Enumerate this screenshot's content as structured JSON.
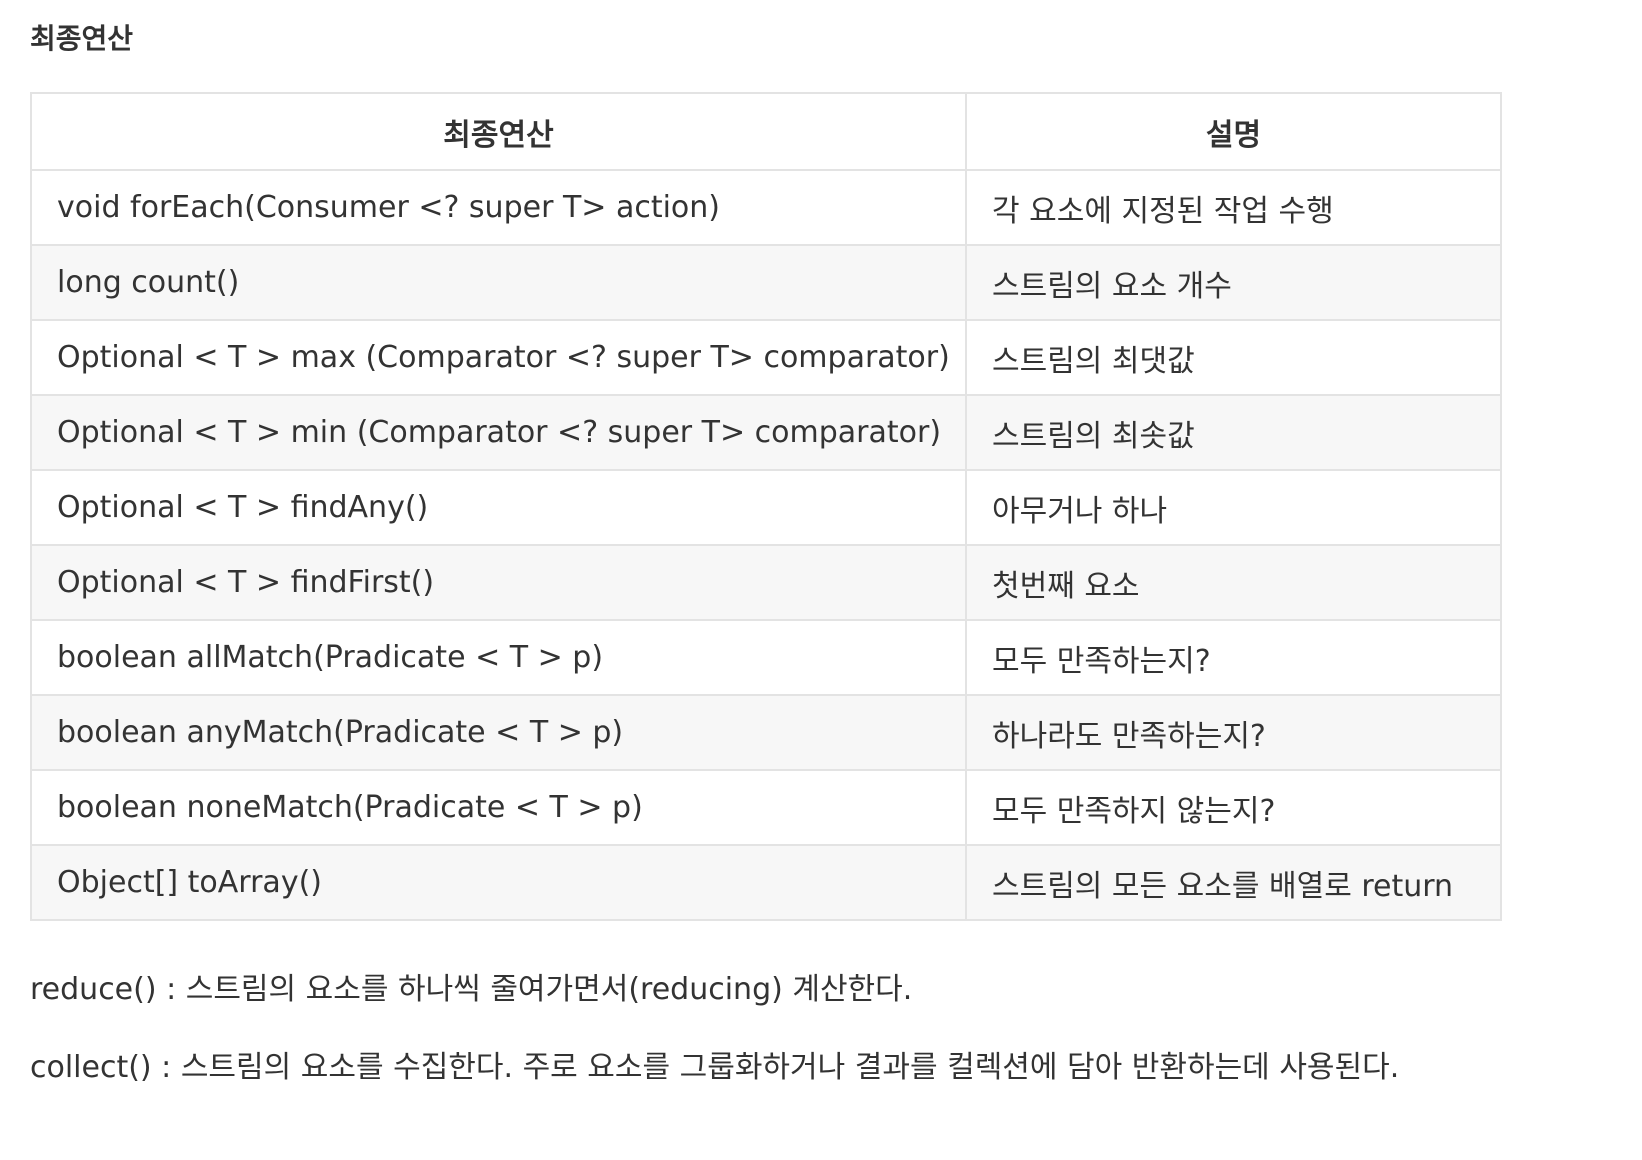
{
  "section_title": "최종연산",
  "table": {
    "headers": [
      "최종연산",
      "설명"
    ],
    "rows": [
      {
        "op": "void forEach(Consumer <? super T> action)",
        "desc": "각 요소에 지정된 작업 수행"
      },
      {
        "op": "long count()",
        "desc": "스트림의 요소 개수"
      },
      {
        "op": "Optional < T > max (Comparator <? super T> comparator)",
        "desc": "스트림의 최댓값"
      },
      {
        "op": "Optional < T > min (Comparator <? super T> comparator)",
        "desc": "스트림의 최솟값"
      },
      {
        "op": "Optional < T > findAny()",
        "desc": "아무거나 하나"
      },
      {
        "op": "Optional < T > findFirst()",
        "desc": "첫번째 요소"
      },
      {
        "op": "boolean allMatch(Pradicate < T > p)",
        "desc": "모두 만족하는지?"
      },
      {
        "op": "boolean anyMatch(Pradicate < T > p)",
        "desc": "하나라도 만족하는지?"
      },
      {
        "op": "boolean noneMatch(Pradicate < T > p)",
        "desc": "모두 만족하지 않는지?"
      },
      {
        "op": "Object[] toArray()",
        "desc": "스트림의 모든 요소를 배열로 return"
      }
    ]
  },
  "notes": [
    "reduce() : 스트림의 요소를 하나씩 줄여가면서(reducing) 계산한다.",
    "collect() : 스트림의 요소를 수집한다. 주로 요소를 그룹화하거나 결과를 컬렉션에 담아 반환하는데 사용된다."
  ]
}
